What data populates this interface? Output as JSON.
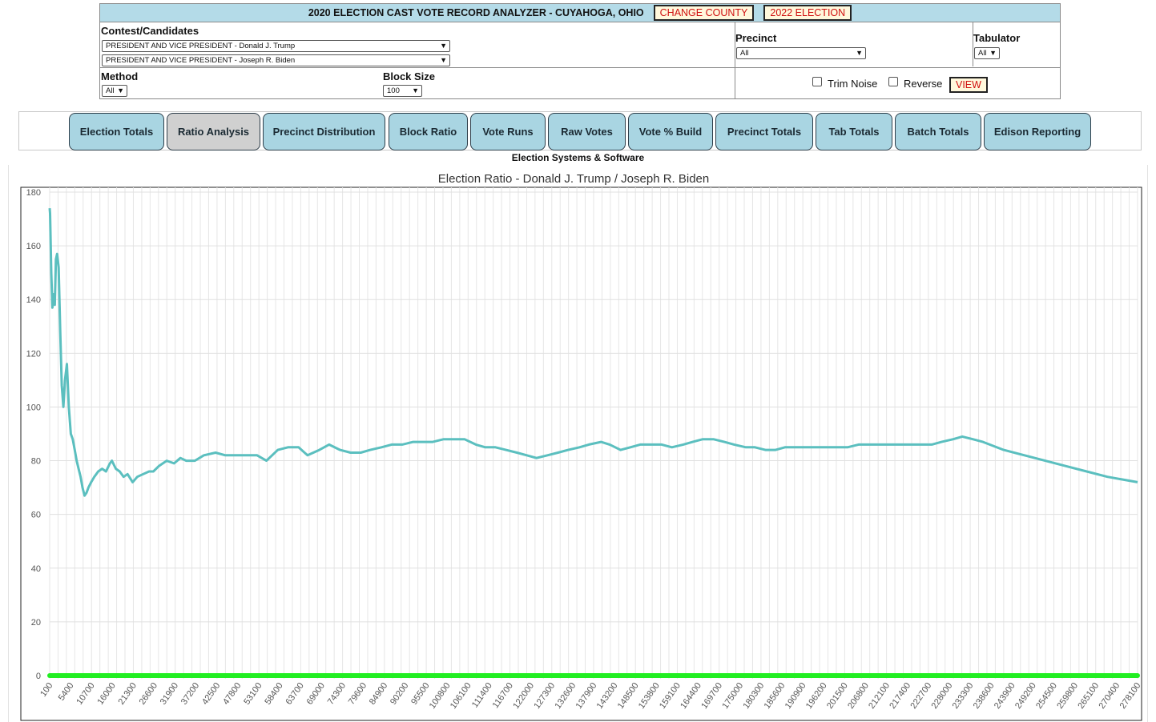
{
  "header": {
    "title": "2020 ELECTION CAST VOTE RECORD ANALYZER - CUYAHOGA, OHIO",
    "change_county": "CHANGE COUNTY",
    "election_2022": "2022 ELECTION"
  },
  "filters": {
    "contest_label": "Contest/Candidates",
    "candidate1": "PRESIDENT AND VICE PRESIDENT - Donald J. Trump",
    "candidate2": "PRESIDENT AND VICE PRESIDENT - Joseph R. Biden",
    "precinct_label": "Precinct",
    "precinct_value": "All",
    "tabulator_label": "Tabulator",
    "tabulator_value": "All",
    "method_label": "Method",
    "method_value": "All",
    "blocksize_label": "Block Size",
    "blocksize_value": "100",
    "trim_noise": "Trim Noise",
    "reverse": "Reverse",
    "view": "VIEW"
  },
  "tabs": [
    {
      "label": "Election Totals",
      "active": false
    },
    {
      "label": "Ratio Analysis",
      "active": true
    },
    {
      "label": "Precinct Distribution",
      "active": false
    },
    {
      "label": "Block Ratio",
      "active": false
    },
    {
      "label": "Vote Runs",
      "active": false
    },
    {
      "label": "Raw Votes",
      "active": false
    },
    {
      "label": "Vote % Build",
      "active": false
    },
    {
      "label": "Precinct Totals",
      "active": false
    },
    {
      "label": "Tab Totals",
      "active": false
    },
    {
      "label": "Batch Totals",
      "active": false
    },
    {
      "label": "Edison Reporting",
      "active": false
    }
  ],
  "vendor": "Election Systems & Software",
  "colors": {
    "title_bar": "#b4dbe8",
    "tab": "#a9d5e2",
    "tab_active": "#d0d0d0",
    "alert_text": "#d01010",
    "series_ratio": "#5bbfbf",
    "series_baseline": "#22ee22"
  },
  "chart_data": {
    "type": "line",
    "title": "Election Ratio - Donald J. Trump / Joseph R. Biden",
    "ylim": [
      0,
      180
    ],
    "yticks": [
      0,
      20,
      40,
      60,
      80,
      100,
      120,
      140,
      160,
      180
    ],
    "xlim": [
      100,
      278100
    ],
    "xticks": [
      100,
      5400,
      10700,
      16000,
      21300,
      26600,
      31900,
      37200,
      42500,
      47800,
      53100,
      58400,
      63700,
      69000,
      74300,
      79600,
      84900,
      90200,
      95500,
      100800,
      106100,
      111400,
      116700,
      122000,
      127300,
      132600,
      137900,
      143200,
      148500,
      153800,
      159100,
      164400,
      169700,
      175000,
      180300,
      185600,
      190900,
      196200,
      201500,
      206800,
      212100,
      217400,
      222700,
      228000,
      233300,
      238600,
      243900,
      249200,
      254500,
      259800,
      265100,
      270400,
      278100
    ],
    "grid": true,
    "series": [
      {
        "x": [
          100,
          200,
          500,
          800,
          1100,
          1400,
          1700,
          2000,
          2400,
          2800,
          3200,
          3600,
          4000,
          4500,
          5000,
          5500,
          6000,
          6500,
          7000,
          7500,
          8000,
          8500,
          9000,
          9500,
          10000,
          10700,
          11500,
          12500,
          13500,
          14500,
          15500,
          16000,
          17000,
          18000,
          19000,
          20000,
          21300,
          22500,
          24000,
          25500,
          26600,
          28000,
          30000,
          31900,
          33500,
          35000,
          37200,
          39500,
          42500,
          45000,
          47800,
          50000,
          53100,
          55500,
          58400,
          61000,
          63700,
          66000,
          69000,
          71500,
          74300,
          77000,
          79600,
          82000,
          84900,
          87500,
          90200,
          93000,
          95500,
          98000,
          100800,
          103500,
          106100,
          109000,
          111400,
          114000,
          116700,
          119500,
          122000,
          124500,
          127300,
          130000,
          132600,
          135500,
          137900,
          141000,
          143200,
          146000,
          148500,
          151000,
          153800,
          156500,
          159100,
          162000,
          164400,
          167000,
          169700,
          172500,
          175000,
          178000,
          180300,
          183000,
          185600,
          188000,
          190900,
          193500,
          196200,
          199000,
          201500,
          204000,
          206800,
          209500,
          212100,
          215000,
          217400,
          220000,
          222700,
          225500,
          228000,
          231000,
          233300,
          236000,
          238600,
          243900,
          249200,
          254500,
          259800,
          265100,
          270400,
          278100
        ],
        "values": [
          174,
          172,
          150,
          137,
          142,
          138,
          155,
          157,
          152,
          128,
          108,
          100,
          110,
          116,
          100,
          90,
          88,
          84,
          80,
          77,
          74,
          70,
          67,
          68,
          70,
          72,
          74,
          76,
          77,
          76,
          79,
          80,
          77,
          76,
          74,
          75,
          72,
          74,
          75,
          76,
          76,
          78,
          80,
          79,
          81,
          80,
          80,
          82,
          83,
          82,
          82,
          82,
          82,
          80,
          84,
          85,
          85,
          82,
          84,
          86,
          84,
          83,
          83,
          84,
          85,
          86,
          86,
          87,
          87,
          87,
          88,
          88,
          88,
          86,
          85,
          85,
          84,
          83,
          82,
          81,
          82,
          83,
          84,
          85,
          86,
          87,
          86,
          84,
          85,
          86,
          86,
          86,
          85,
          86,
          87,
          88,
          88,
          87,
          86,
          85,
          85,
          84,
          84,
          85,
          85,
          85,
          85,
          85,
          85,
          85,
          86,
          86,
          86,
          86,
          86,
          86,
          86,
          86,
          87,
          88,
          89,
          88,
          87,
          84,
          82,
          80,
          78,
          76,
          74,
          72
        ]
      },
      {
        "x": [
          100,
          278100
        ],
        "values": [
          0,
          0
        ]
      }
    ]
  }
}
